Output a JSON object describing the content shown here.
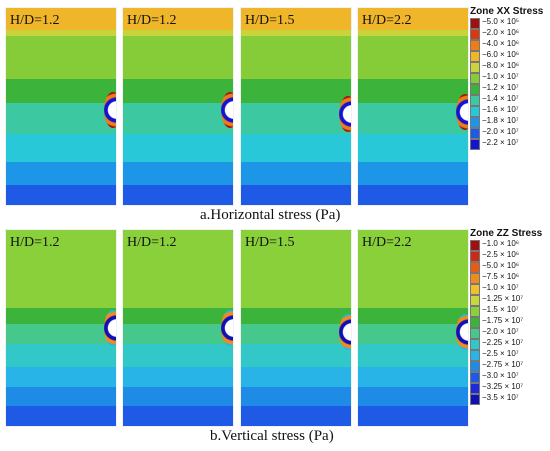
{
  "top": {
    "caption": "a.Horizontal stress (Pa)",
    "panels": [
      {
        "label": "H/D=1.2"
      },
      {
        "label": "H/D=1.2"
      },
      {
        "label": "H/D=1.5"
      },
      {
        "label": "H/D=2.2"
      }
    ],
    "legend": {
      "title": "Zone XX Stress",
      "entries": [
        {
          "label": "−5.0 × 10⁵",
          "color": "#a01010"
        },
        {
          "label": "−2.0 × 10⁶",
          "color": "#d83a10"
        },
        {
          "label": "−4.0 × 10⁶",
          "color": "#ee7d18"
        },
        {
          "label": "−6.0 × 10⁶",
          "color": "#f0b62a"
        },
        {
          "label": "−8.0 × 10⁶",
          "color": "#c8d43a"
        },
        {
          "label": "−1.0 × 10⁷",
          "color": "#86cc38"
        },
        {
          "label": "−1.2 × 10⁷",
          "color": "#3cb43c"
        },
        {
          "label": "−1.4 × 10⁷",
          "color": "#3cc8a0"
        },
        {
          "label": "−1.6 × 10⁷",
          "color": "#28c8d8"
        },
        {
          "label": "−1.8 × 10⁷",
          "color": "#1e96e8"
        },
        {
          "label": "−2.0 × 10⁷",
          "color": "#1e5ae6"
        },
        {
          "label": "−2.2 × 10⁷",
          "color": "#1414d0"
        }
      ]
    }
  },
  "bottom": {
    "caption": "b.Vertical stress (Pa)",
    "panels": [
      {
        "label": "H/D=1.2"
      },
      {
        "label": "H/D=1.2"
      },
      {
        "label": "H/D=1.5"
      },
      {
        "label": "H/D=2.2"
      }
    ],
    "legend": {
      "title": "Zone ZZ Stress",
      "entries": [
        {
          "label": "−1.0 × 10⁶",
          "color": "#a01010"
        },
        {
          "label": "−2.5 × 10⁶",
          "color": "#cc2a12"
        },
        {
          "label": "−5.0 × 10⁶",
          "color": "#e65c14"
        },
        {
          "label": "−7.5 × 10⁶",
          "color": "#f08c1e"
        },
        {
          "label": "−1.0 × 10⁷",
          "color": "#f0c02a"
        },
        {
          "label": "−1.25 × 10⁷",
          "color": "#c8d83a"
        },
        {
          "label": "−1.5 × 10⁷",
          "color": "#8ad03a"
        },
        {
          "label": "−1.75 × 10⁷",
          "color": "#3cb43c"
        },
        {
          "label": "−2.0 × 10⁷",
          "color": "#46c88c"
        },
        {
          "label": "−2.25 × 10⁷",
          "color": "#32c8c8"
        },
        {
          "label": "−2.5 × 10⁷",
          "color": "#28b4e6"
        },
        {
          "label": "−2.75 × 10⁷",
          "color": "#1e8ce6"
        },
        {
          "label": "−3.0 × 10⁷",
          "color": "#1e5ae6"
        },
        {
          "label": "−3.25 × 10⁷",
          "color": "#1e28dc"
        },
        {
          "label": "−3.5 × 10⁷",
          "color": "#1010b4"
        }
      ]
    }
  }
}
